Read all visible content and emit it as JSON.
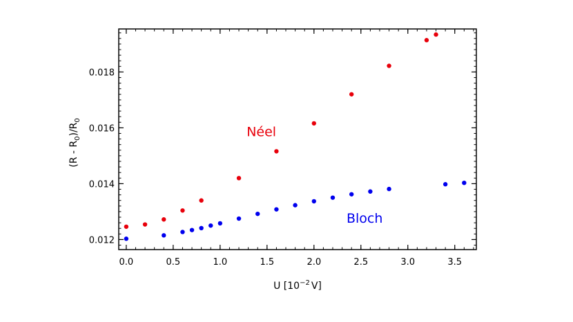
{
  "chart_data": {
    "type": "scatter",
    "xlabel": "U [10",
    "xlabel_sup": "−2",
    "xlabel_unit": "V]",
    "ylabel": "(R - R",
    "ylabel_sub": "0",
    "ylabel_mid": ")/R",
    "ylabel_sub2": "0",
    "xlim": [
      -0.08,
      3.73
    ],
    "ylim": [
      0.01164,
      0.01954
    ],
    "x_ticks": [
      {
        "value": 0.0,
        "label": "0.0"
      },
      {
        "value": 0.5,
        "label": "0.5"
      },
      {
        "value": 1.0,
        "label": "1.0"
      },
      {
        "value": 1.5,
        "label": "1.5"
      },
      {
        "value": 2.0,
        "label": "2.0"
      },
      {
        "value": 2.5,
        "label": "2.5"
      },
      {
        "value": 3.0,
        "label": "3.0"
      },
      {
        "value": 3.5,
        "label": "3.5"
      }
    ],
    "y_ticks": [
      {
        "value": 0.012,
        "label": "0.012"
      },
      {
        "value": 0.014,
        "label": "0.014"
      },
      {
        "value": 0.016,
        "label": "0.016"
      },
      {
        "value": 0.018,
        "label": "0.018"
      }
    ],
    "grid": false,
    "series": [
      {
        "name": "Néel",
        "color": "#e8000b",
        "label_at": [
          1.44,
          0.01588
        ],
        "points": [
          [
            0.0,
            0.01246
          ],
          [
            0.2,
            0.01254
          ],
          [
            0.4,
            0.01272
          ],
          [
            0.6,
            0.01304
          ],
          [
            0.8,
            0.0134
          ],
          [
            1.2,
            0.0142
          ],
          [
            1.6,
            0.01516
          ],
          [
            2.0,
            0.01616
          ],
          [
            2.4,
            0.0172
          ],
          [
            2.8,
            0.01822
          ],
          [
            3.2,
            0.01914
          ],
          [
            3.3,
            0.01934
          ]
        ]
      },
      {
        "name": "Bloch",
        "color": "#0000ee",
        "label_at": [
          2.54,
          0.01277
        ],
        "points": [
          [
            0.0,
            0.01203
          ],
          [
            0.4,
            0.01215
          ],
          [
            0.6,
            0.01227
          ],
          [
            0.7,
            0.01234
          ],
          [
            0.8,
            0.01241
          ],
          [
            0.9,
            0.0125
          ],
          [
            1.0,
            0.01258
          ],
          [
            1.2,
            0.01275
          ],
          [
            1.4,
            0.01292
          ],
          [
            1.6,
            0.01308
          ],
          [
            1.8,
            0.01323
          ],
          [
            2.0,
            0.01337
          ],
          [
            2.2,
            0.0135
          ],
          [
            2.4,
            0.01362
          ],
          [
            2.6,
            0.01372
          ],
          [
            2.8,
            0.01381
          ],
          [
            3.4,
            0.01398
          ],
          [
            3.6,
            0.01403
          ]
        ]
      }
    ]
  }
}
